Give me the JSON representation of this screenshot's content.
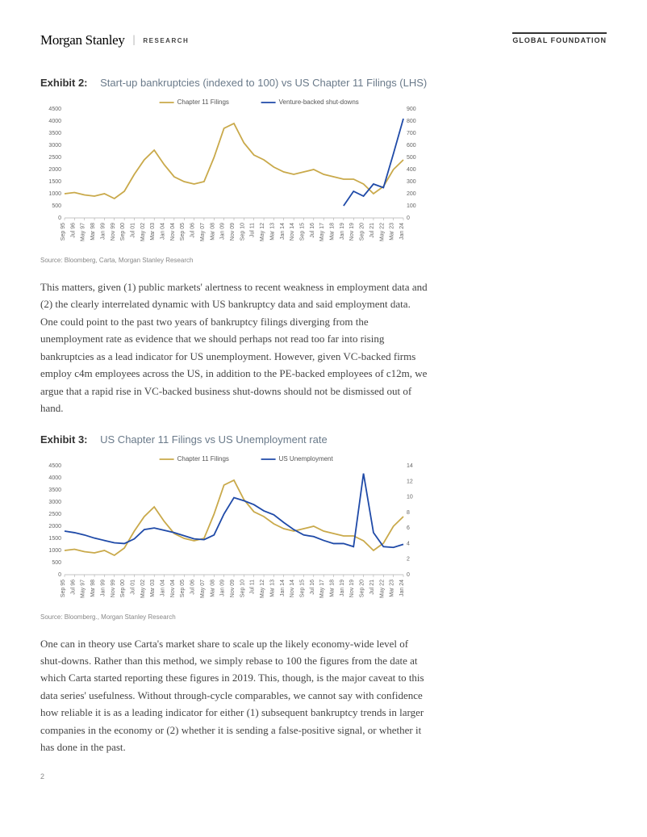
{
  "header": {
    "brand": "Morgan Stanley",
    "research_label": "RESEARCH",
    "global_foundation": "GLOBAL FOUNDATION"
  },
  "exhibit2": {
    "label": "Exhibit 2:",
    "title": "Start-up bankruptcies (indexed to 100) vs US Chapter 11 Filings (LHS)",
    "source": "Source: Bloomberg, Carta, Morgan Stanley Research",
    "legend": {
      "series1": "Chapter 11 Filings",
      "series2": "Venture-backed shut-downs"
    },
    "colors": {
      "series1": "#c9a94a",
      "series2": "#1f4aa8",
      "axis": "#888888",
      "grid": "#ffffff",
      "tick_text": "#666666"
    },
    "fontsize": {
      "axis": 7,
      "legend": 8
    },
    "y_left": {
      "min": 0,
      "max": 4500,
      "step": 500
    },
    "y_right": {
      "min": 0,
      "max": 900,
      "step": 100
    },
    "x_labels": [
      "Sep 95",
      "Jul 96",
      "May 97",
      "Mar 98",
      "Jan 99",
      "Nov 99",
      "Sep 00",
      "Jul 01",
      "May 02",
      "Mar 03",
      "Jan 04",
      "Nov 04",
      "Sep 05",
      "Jul 06",
      "May 07",
      "Mar 08",
      "Jan 09",
      "Nov 09",
      "Sep 10",
      "Jul 11",
      "May 12",
      "Mar 13",
      "Jan 14",
      "Nov 14",
      "Sep 15",
      "Jul 16",
      "May 17",
      "Mar 18",
      "Jan 19",
      "Nov 19",
      "Sep 20",
      "Jul 21",
      "May 22",
      "Mar 23",
      "Jan 24"
    ],
    "series1_data": [
      1000,
      1050,
      950,
      900,
      1000,
      800,
      1100,
      1800,
      2400,
      2800,
      2200,
      1700,
      1500,
      1400,
      1500,
      2500,
      3700,
      3900,
      3100,
      2600,
      2400,
      2100,
      1900,
      1800,
      1900,
      2000,
      1800,
      1700,
      1600,
      1600,
      1400,
      1000,
      1300,
      2000,
      2400
    ],
    "series2_data": [
      null,
      null,
      null,
      null,
      null,
      null,
      null,
      null,
      null,
      null,
      null,
      null,
      null,
      null,
      null,
      null,
      null,
      null,
      null,
      null,
      null,
      null,
      null,
      null,
      null,
      null,
      null,
      null,
      100,
      220,
      180,
      280,
      250,
      530,
      820
    ],
    "line_width": 1.8
  },
  "paragraph1": "This matters, given (1) public markets' alertness to recent weakness in employment data and (2) the clearly interrelated dynamic with US bankruptcy data and said employment data. One could point to the past two years of bankruptcy filings diverging from the unemployment rate as evidence that we should perhaps not read too far into rising bankruptcies as a lead indicator for US unemployment. However, given VC-backed firms employ c4m employees across the US, in addition to the PE-backed employees of c12m, we argue that a rapid rise in VC-backed business shut-downs should not be dismissed out of hand.",
  "exhibit3": {
    "label": "Exhibit 3:",
    "title": "US Chapter 11 Filings vs US Unemployment rate",
    "source": "Source: Bloomberg., Morgan Stanley Research",
    "legend": {
      "series1": "Chapter 11 Filings",
      "series2": "US Unemployment"
    },
    "colors": {
      "series1": "#c9a94a",
      "series2": "#1f4aa8",
      "axis": "#888888",
      "tick_text": "#666666"
    },
    "fontsize": {
      "axis": 7,
      "legend": 8
    },
    "y_left": {
      "min": 0,
      "max": 4500,
      "step": 500
    },
    "y_right": {
      "min": 0,
      "max": 14,
      "step": 2
    },
    "x_labels": [
      "Sep 95",
      "Jul 96",
      "May 97",
      "Mar 98",
      "Jan 99",
      "Nov 99",
      "Sep 00",
      "Jul 01",
      "May 02",
      "Mar 03",
      "Jan 04",
      "Nov 04",
      "Sep 05",
      "Jul 06",
      "May 07",
      "Mar 08",
      "Jan 09",
      "Nov 09",
      "Sep 10",
      "Jul 11",
      "May 12",
      "Mar 13",
      "Jan 14",
      "Nov 14",
      "Sep 15",
      "Jul 16",
      "May 17",
      "Mar 18",
      "Jan 19",
      "Nov 19",
      "Sep 20",
      "Jul 21",
      "May 22",
      "Mar 23",
      "Jan 24"
    ],
    "series1_data": [
      1000,
      1050,
      950,
      900,
      1000,
      800,
      1100,
      1800,
      2400,
      2800,
      2200,
      1700,
      1500,
      1400,
      1500,
      2500,
      3700,
      3900,
      3100,
      2600,
      2400,
      2100,
      1900,
      1800,
      1900,
      2000,
      1800,
      1700,
      1600,
      1600,
      1400,
      1000,
      1300,
      2000,
      2400
    ],
    "series2_data": [
      5.6,
      5.4,
      5.1,
      4.7,
      4.4,
      4.1,
      4.0,
      4.6,
      5.8,
      6.0,
      5.7,
      5.4,
      5.0,
      4.6,
      4.5,
      5.1,
      7.8,
      9.9,
      9.5,
      9.0,
      8.2,
      7.7,
      6.7,
      5.8,
      5.1,
      4.9,
      4.4,
      4.0,
      4.0,
      3.6,
      13.0,
      5.4,
      3.6,
      3.5,
      3.9
    ],
    "line_width": 1.8
  },
  "paragraph2": "One can in theory use Carta's market share to scale up the likely economy-wide level of shut-downs. Rather than this method, we simply rebase to 100 the figures from the date at which Carta started reporting these figures in 2019. This, though, is the major caveat to this data series' usefulness. Without through-cycle comparables, we cannot say with confidence how reliable it is as a leading indicator for either (1) subsequent bankruptcy trends in larger companies in the economy or (2) whether it is sending a false-positive signal, or whether it has done in the past.",
  "page_number": "2"
}
